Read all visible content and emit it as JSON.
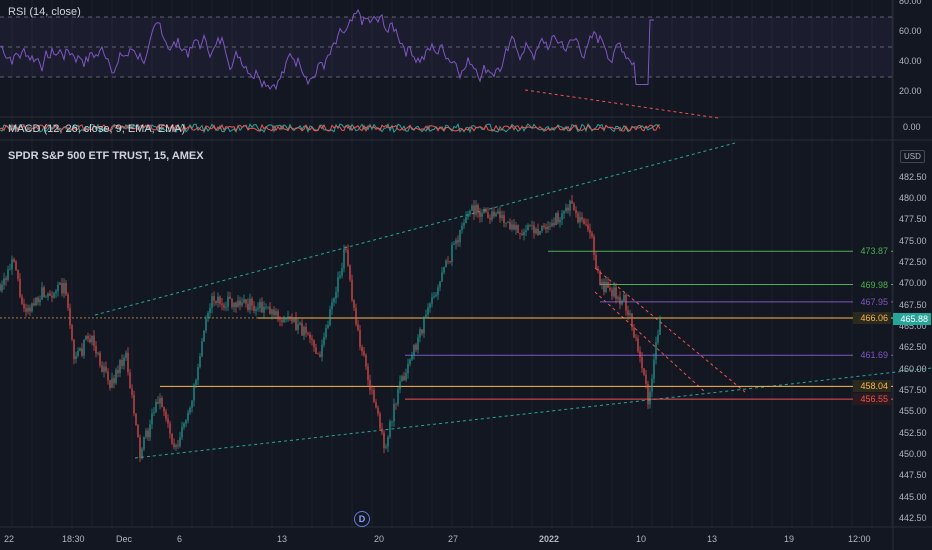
{
  "panels": {
    "rsi_title": "RSI (14, close)",
    "macd_title": "MACD (12, 26, close, 9, EMA, EMA)",
    "main_title": "SPDR S&P 500 ETF TRUST, 15, AMEX",
    "currency": "USD"
  },
  "rsi_axis": [
    "80.00",
    "60.00",
    "40.00",
    "20.00"
  ],
  "macd_axis": [
    "0.00"
  ],
  "price_axis": [
    "482.50",
    "480.00",
    "477.50",
    "475.00",
    "472.50",
    "470.00",
    "467.50",
    "465.00",
    "462.50",
    "460.00",
    "457.50",
    "455.00",
    "452.50",
    "450.00",
    "447.50",
    "445.00",
    "442.50"
  ],
  "price_tags": [
    {
      "value": "473.87",
      "color": "#4caf50",
      "bg": "#131722"
    },
    {
      "value": "469.98",
      "color": "#4caf50",
      "bg": "#131722"
    },
    {
      "value": "467.95",
      "color": "#7e57c2",
      "bg": "#131722"
    },
    {
      "value": "466.06",
      "color": "#ffb74d",
      "bg": "#2a2a1e"
    },
    {
      "value": "465.88",
      "color": "#d1d4dc",
      "bg": "#26a69a"
    },
    {
      "value": "461.69",
      "color": "#7e57c2",
      "bg": "#131722"
    },
    {
      "value": "458.04",
      "color": "#ffb74d",
      "bg": "#2a2a1e"
    },
    {
      "value": "456.55",
      "color": "#ef5350",
      "bg": "#2a1a1e"
    }
  ],
  "time_axis": [
    "22",
    "18:30",
    "Dec",
    "6",
    "13",
    "20",
    "27",
    "2022",
    "10",
    "13",
    "19",
    "12:00"
  ],
  "event_badge": "D",
  "colors": {
    "background": "#131722",
    "rsi": "#7e57c2",
    "up": "#26a69a",
    "down": "#ef5350",
    "grid": "#2a2e39"
  }
}
